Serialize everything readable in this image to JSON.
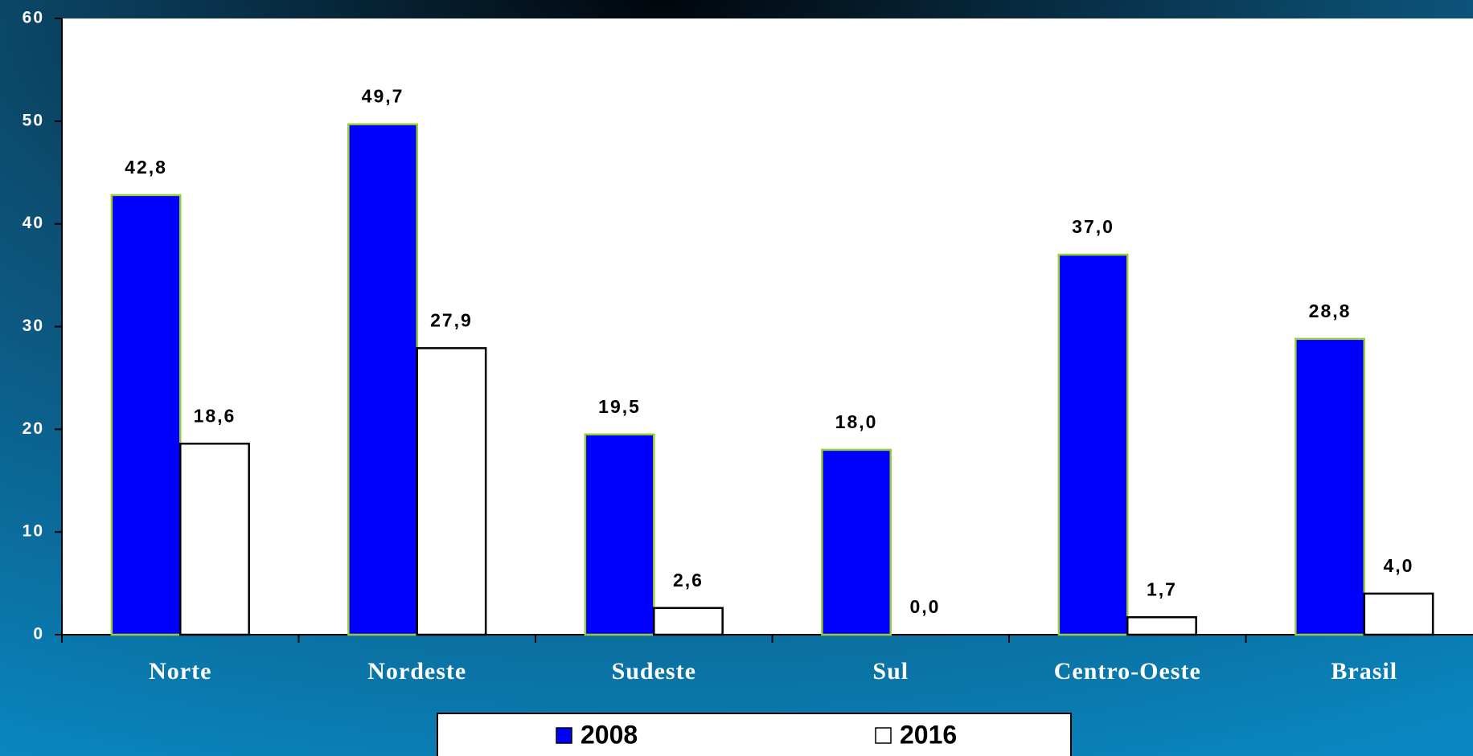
{
  "chart_data": {
    "type": "bar",
    "categories": [
      "Norte",
      "Nordeste",
      "Sudeste",
      "Sul",
      "Centro-Oeste",
      "Brasil"
    ],
    "series": [
      {
        "name": "2008",
        "color": "#0000ff",
        "values": [
          42.8,
          49.7,
          19.5,
          18.0,
          37.0,
          28.8
        ],
        "value_labels": [
          "42,8",
          "49,7",
          "19,5",
          "18,0",
          "37,0",
          "28,8"
        ]
      },
      {
        "name": "2016",
        "color": "#ffffff",
        "values": [
          18.6,
          27.9,
          2.6,
          0.0,
          1.7,
          4.0
        ],
        "value_labels": [
          "18,6",
          "27,9",
          "2,6",
          "0,0",
          "1,7",
          "4,0"
        ]
      }
    ],
    "ylim": [
      0,
      60
    ],
    "yticks": [
      0,
      10,
      20,
      30,
      40,
      50,
      60
    ],
    "grid": false,
    "legend": "bottom"
  }
}
